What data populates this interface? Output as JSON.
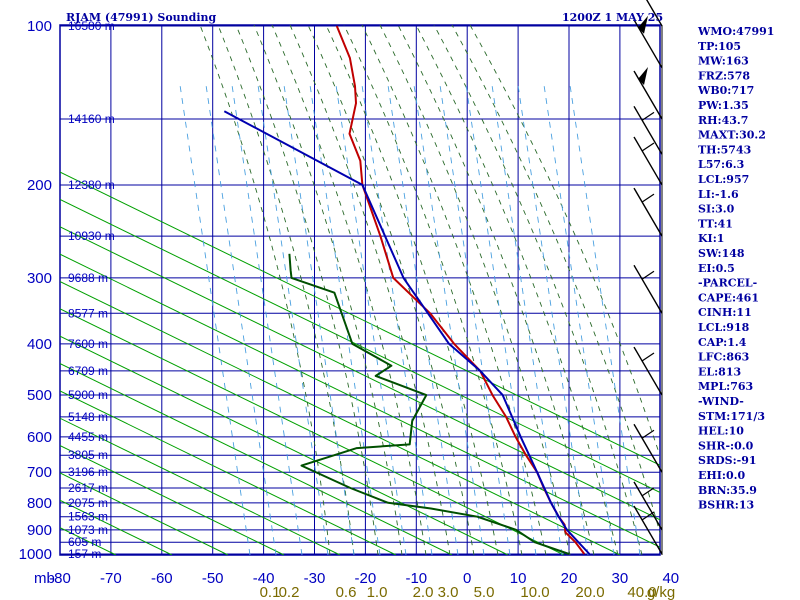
{
  "header": {
    "station": "RJAM (47991) Sounding",
    "time": "1200Z  1 MAY 25"
  },
  "indices": [
    "WMO:47991",
    "TP:105",
    "MW:163",
    "FRZ:578",
    "WB0:717",
    "PW:1.35",
    "RH:43.7",
    "MAXT:30.2",
    "TH:5743",
    "L57:6.3",
    "LCL:957",
    "LI:-1.6",
    "SI:3.0",
    "TT:41",
    "KI:1",
    "SW:148",
    "EI:0.5",
    "-PARCEL-",
    "CAPE:461",
    "CINH:11",
    "LCL:918",
    "CAP:1.4",
    "LFC:863",
    "EL:813",
    "MPL:763",
    "-WIND-",
    "STM:171/3",
    "HEL:10",
    "SHR-:0.0",
    "SRDS:-91",
    "EHI:0.0",
    "BRN:35.9",
    "BSHR:13"
  ],
  "chart_data": {
    "type": "skew-t log-p sounding",
    "pressure_axis": {
      "unit_label": "mb",
      "ticks": [
        100,
        200,
        300,
        400,
        500,
        600,
        700,
        800,
        900,
        1000
      ],
      "range": [
        100,
        1000
      ],
      "scale": "log"
    },
    "temperature_axis": {
      "ticks": [
        -80,
        -70,
        -60,
        -50,
        -40,
        -30,
        -20,
        -10,
        0,
        10,
        20,
        30,
        40
      ],
      "range": [
        -80,
        40
      ],
      "skewed": true
    },
    "height_labels": [
      {
        "p": 100,
        "text": "16580 m"
      },
      {
        "p": 150,
        "text": "14160 m"
      },
      {
        "p": 200,
        "text": "12380 m"
      },
      {
        "p": 250,
        "text": "10930 m"
      },
      {
        "p": 300,
        "text": "9688 m"
      },
      {
        "p": 350,
        "text": "8577 m"
      },
      {
        "p": 400,
        "text": "7600 m"
      },
      {
        "p": 450,
        "text": "6709 m"
      },
      {
        "p": 500,
        "text": "5900 m"
      },
      {
        "p": 550,
        "text": "5148 m"
      },
      {
        "p": 600,
        "text": "4455 m"
      },
      {
        "p": 650,
        "text": "3805 m"
      },
      {
        "p": 700,
        "text": "3196 m"
      },
      {
        "p": 750,
        "text": "2617 m"
      },
      {
        "p": 800,
        "text": "2075 m"
      },
      {
        "p": 850,
        "text": "1563 m"
      },
      {
        "p": 900,
        "text": "1073 m"
      },
      {
        "p": 950,
        "text": "605 m"
      },
      {
        "p": 1000,
        "text": "157 m"
      }
    ],
    "mixing_ratio_labels": [
      "0.1",
      "0.2",
      "0.6",
      "1.0",
      "2.0",
      "3.0",
      "5.0",
      "10.0",
      "20.0",
      "40.0",
      "g/kg"
    ],
    "series": [
      {
        "name": "Temperature",
        "color": "#c00000",
        "points": [
          [
            100,
            -82
          ],
          [
            115,
            -76
          ],
          [
            130,
            -72
          ],
          [
            140,
            -70
          ],
          [
            160,
            -68
          ],
          [
            180,
            -63
          ],
          [
            200,
            -60
          ],
          [
            250,
            -51
          ],
          [
            300,
            -44
          ],
          [
            350,
            -33
          ],
          [
            400,
            -25
          ],
          [
            450,
            -17
          ],
          [
            500,
            -12
          ],
          [
            550,
            -7
          ],
          [
            600,
            -3
          ],
          [
            650,
            1
          ],
          [
            700,
            5
          ],
          [
            750,
            8
          ],
          [
            800,
            11
          ],
          [
            850,
            14
          ],
          [
            880,
            16
          ],
          [
            910,
            17
          ],
          [
            950,
            20
          ],
          [
            1000,
            23
          ]
        ]
      },
      {
        "name": "Dewpoint",
        "color": "#005000",
        "points": [
          [
            270,
            -67
          ],
          [
            290,
            -65
          ],
          [
            300,
            -64
          ],
          [
            320,
            -54
          ],
          [
            400,
            -45
          ],
          [
            440,
            -35
          ],
          [
            460,
            -37
          ],
          [
            500,
            -25
          ],
          [
            560,
            -25
          ],
          [
            620,
            -23
          ],
          [
            630,
            -33
          ],
          [
            680,
            -42
          ],
          [
            750,
            -30
          ],
          [
            800,
            -21
          ],
          [
            820,
            -12
          ],
          [
            850,
            -2
          ],
          [
            900,
            7
          ],
          [
            950,
            12
          ],
          [
            1000,
            20
          ]
        ]
      },
      {
        "name": "Parcel path",
        "color": "#0000b0",
        "points": [
          [
            145,
            -95
          ],
          [
            200,
            -60
          ],
          [
            300,
            -42
          ],
          [
            400,
            -26
          ],
          [
            450,
            -17
          ],
          [
            500,
            -10
          ],
          [
            600,
            -2
          ],
          [
            700,
            5
          ],
          [
            800,
            11
          ],
          [
            850,
            14
          ],
          [
            900,
            17
          ],
          [
            1000,
            24
          ]
        ]
      }
    ],
    "wind_barbs": [
      {
        "p": 100,
        "style": "flag"
      },
      {
        "p": 120,
        "style": "flag"
      },
      {
        "p": 150,
        "style": "flag"
      },
      {
        "p": 175,
        "style": "barb"
      },
      {
        "p": 200,
        "style": "barb"
      },
      {
        "p": 250,
        "style": "barb"
      },
      {
        "p": 350,
        "style": "barb"
      },
      {
        "p": 500,
        "style": "barb"
      },
      {
        "p": 700,
        "style": "barb"
      },
      {
        "p": 900,
        "style": "barb"
      },
      {
        "p": 1000,
        "style": "barb"
      }
    ],
    "colors": {
      "frame": "#0000a0",
      "grid": "#0000a0",
      "dry_adiabat": "#00a000",
      "moist_adiabat": "#2a6a2a",
      "mixing_ratio": "#4aa0e0"
    }
  }
}
